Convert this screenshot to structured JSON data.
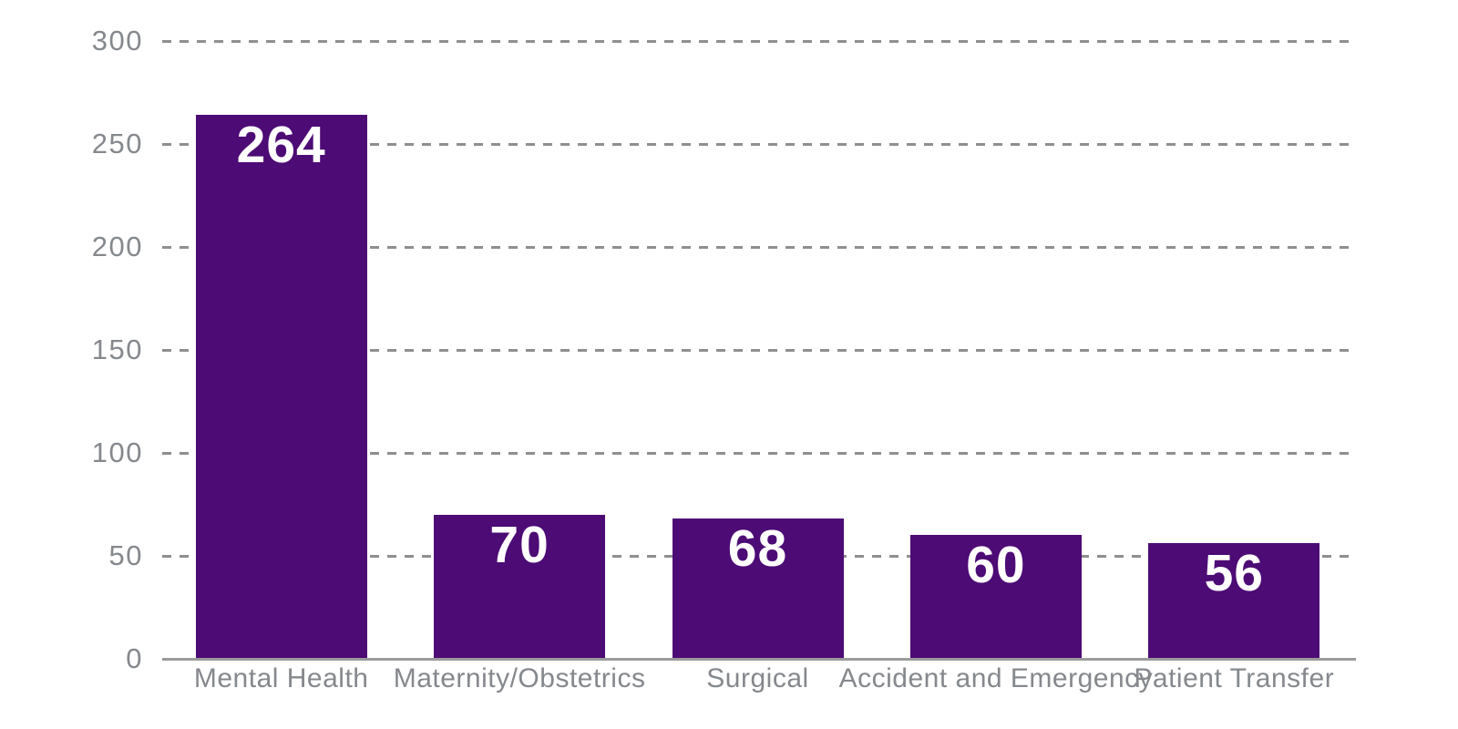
{
  "chart_data": {
    "type": "bar",
    "title": "",
    "xlabel": "",
    "ylabel": "",
    "categories": [
      "Mental Health",
      "Maternity/Obstetrics",
      "Surgical",
      "Accident and Emergency",
      "Patient Transfer"
    ],
    "values": [
      264,
      70,
      68,
      60,
      56
    ],
    "value_labels": [
      "264",
      "70",
      "68",
      "60",
      "56"
    ],
    "ylim": [
      0,
      300
    ],
    "yticks": [
      0,
      50,
      100,
      150,
      200,
      250,
      300
    ],
    "ytick_labels": [
      "0",
      "50",
      "100",
      "150",
      "200",
      "250",
      "300"
    ],
    "grid": "horizontal-dashed",
    "legend": "none",
    "colors": {
      "bar": "#4D0B75",
      "value_label": "#FFFFFF",
      "axis_text": "#85888C",
      "gridline": "#8F8F8F",
      "axis_line": "#9B9B9B",
      "background": "#FFFFFF"
    }
  }
}
